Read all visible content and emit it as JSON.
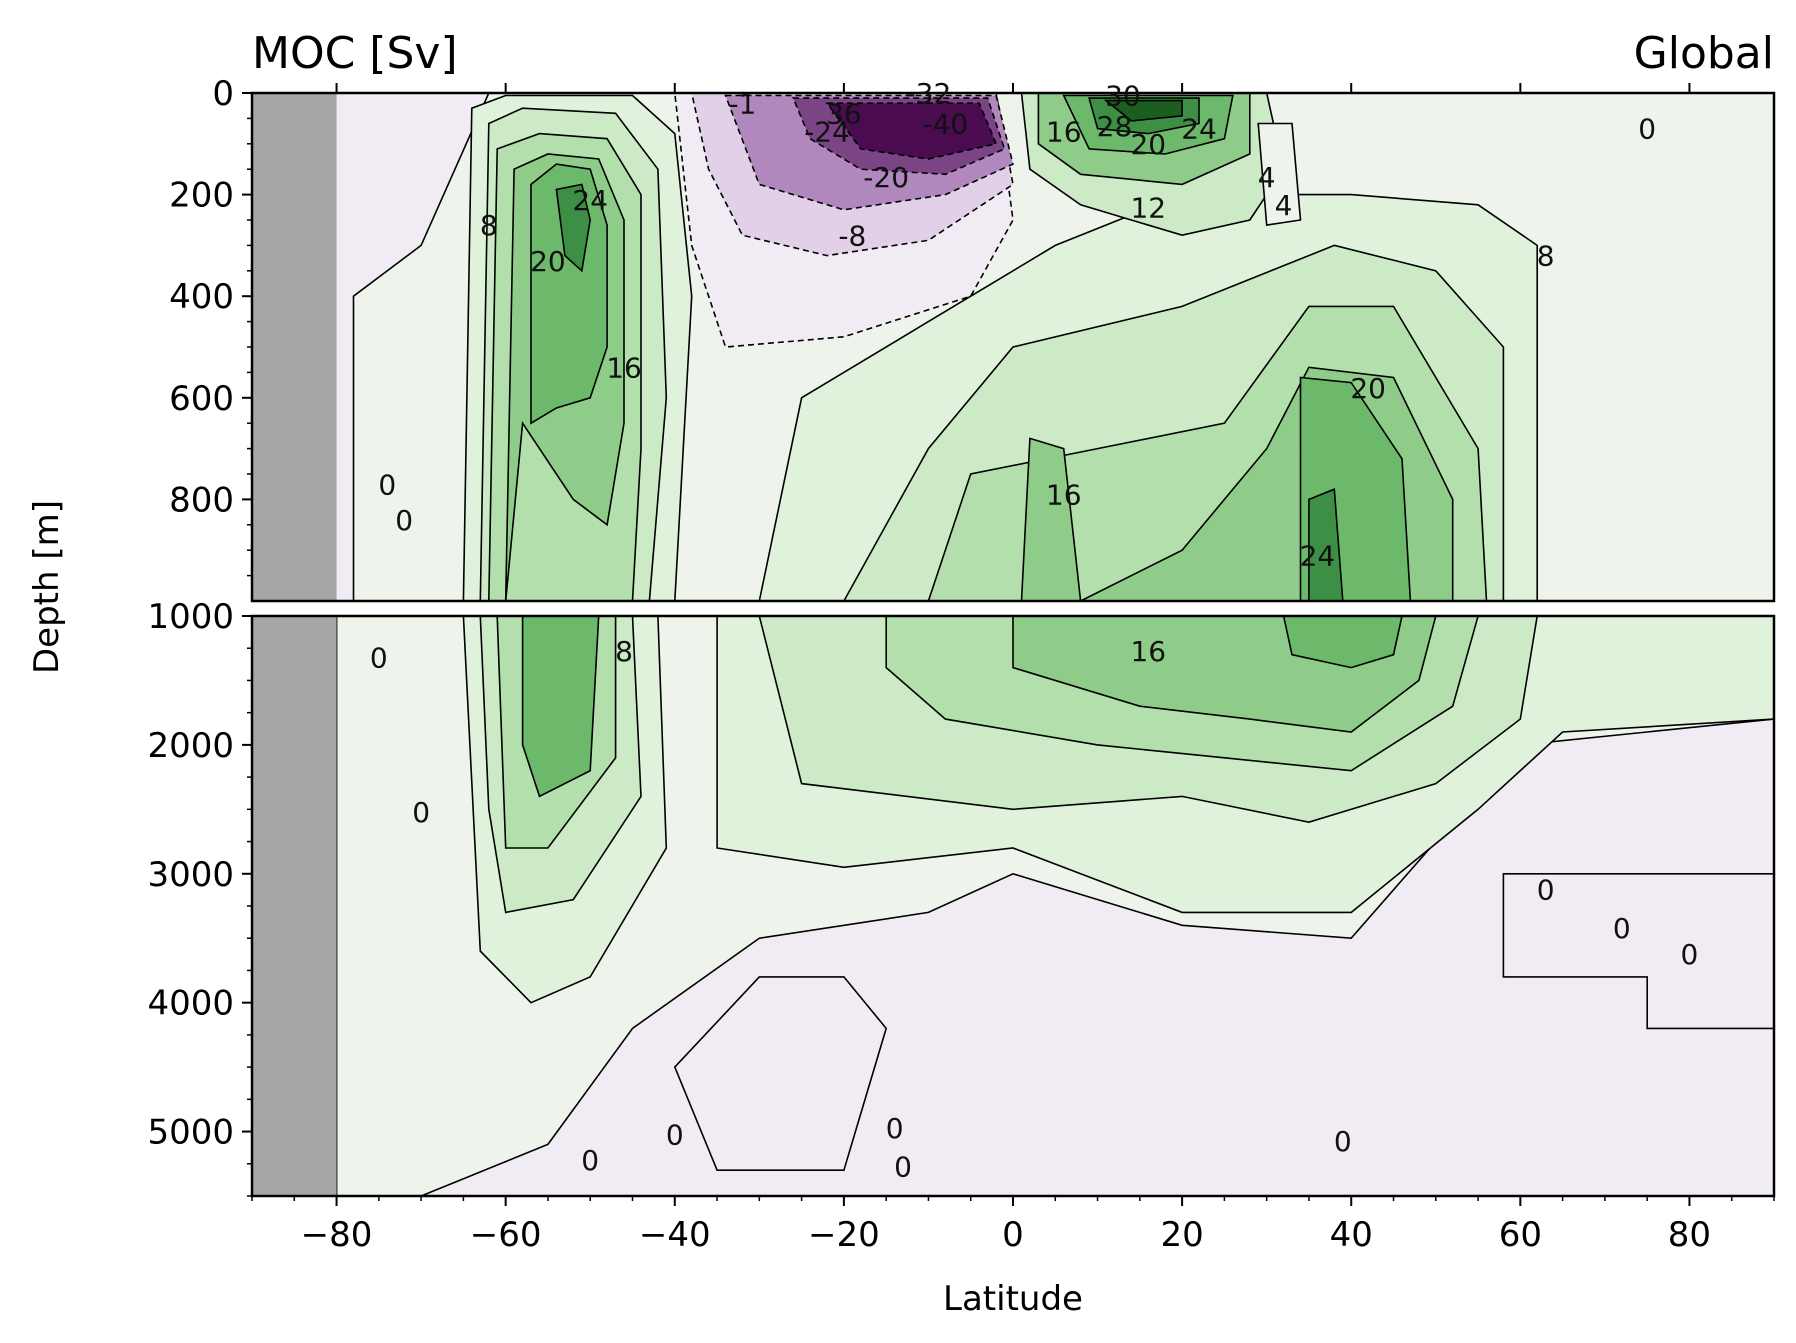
{
  "chart_data": {
    "type": "heatmap",
    "title_left": "MOC [Sv]",
    "title_right": "Global",
    "xlabel": "Latitude",
    "ylabel": "Depth [m]",
    "xlim": [
      -90,
      90
    ],
    "upper_ylim": [
      1000,
      0
    ],
    "lower_ylim": [
      5500,
      1000
    ],
    "x_ticks": [
      -80,
      -60,
      -40,
      -20,
      0,
      20,
      40,
      60,
      80
    ],
    "x_tick_labels": [
      "−80",
      "−60",
      "−40",
      "−20",
      "0",
      "20",
      "40",
      "60",
      "80"
    ],
    "upper_y_ticks": [
      0,
      200,
      400,
      600,
      800
    ],
    "upper_y_tick_labels": [
      "0",
      "200",
      "400",
      "600",
      "800"
    ],
    "lower_y_ticks": [
      1000,
      2000,
      3000,
      4000,
      5000
    ],
    "lower_y_tick_labels": [
      "1000",
      "2000",
      "3000",
      "4000",
      "5000"
    ],
    "land_mask_lat": -80,
    "colors": {
      "land": "#a6a6a6",
      "neg_weak": "#f1ecf4",
      "neg_mid": "#e2d0e8",
      "neg_strong": "#b088bd",
      "neg_max": "#4a0c4e",
      "pos_weak": "#eef3ec",
      "pos_1": "#e0f2dc",
      "pos_2": "#cdeac6",
      "pos_3": "#b2dfab",
      "pos_4": "#8fcc89",
      "pos_5": "#6cb96c",
      "pos_6": "#3d8f45",
      "pos_max": "#1b5e20"
    },
    "features": [
      {
        "name": "southern-cell",
        "sign": "positive",
        "lat_range": [
          -65,
          -42
        ],
        "depth_range": [
          0,
          4000
        ],
        "peak": 24,
        "peak_lat": -52,
        "peak_depth": 300
      },
      {
        "name": "tropical-south-cell",
        "sign": "negative",
        "lat_range": [
          -40,
          0
        ],
        "depth_range": [
          0,
          300
        ],
        "peak": -40,
        "peak_lat": -12,
        "peak_depth": 80
      },
      {
        "name": "tropical-north-cell",
        "sign": "positive",
        "lat_range": [
          2,
          30
        ],
        "depth_range": [
          0,
          200
        ],
        "peak": 30,
        "peak_lat": 18,
        "peak_depth": 50
      },
      {
        "name": "nadw-cell",
        "sign": "positive",
        "lat_range": [
          -20,
          60
        ],
        "depth_range": [
          500,
          3500
        ],
        "peak": 24,
        "peak_lat": 38,
        "peak_depth": 1100
      }
    ],
    "contour_labels": [
      {
        "text": "8",
        "lat": -62,
        "depth": 280
      },
      {
        "text": "24",
        "lat": -50,
        "depth": 230
      },
      {
        "text": "20",
        "lat": -55,
        "depth": 350
      },
      {
        "text": "16",
        "lat": -46,
        "depth": 560
      },
      {
        "text": "0",
        "lat": -74,
        "depth": 790
      },
      {
        "text": "0",
        "lat": -72,
        "depth": 860
      },
      {
        "text": "-1",
        "lat": -32,
        "depth": 40
      },
      {
        "text": "36",
        "lat": -20,
        "depth": 60
      },
      {
        "text": "-24",
        "lat": -22,
        "depth": 95
      },
      {
        "text": "-32",
        "lat": -10,
        "depth": 20
      },
      {
        "text": "-40",
        "lat": -8,
        "depth": 80
      },
      {
        "text": "-20",
        "lat": -15,
        "depth": 185
      },
      {
        "text": "-8",
        "lat": -19,
        "depth": 300
      },
      {
        "text": "16",
        "lat": 6,
        "depth": 95
      },
      {
        "text": "28",
        "lat": 12,
        "depth": 85
      },
      {
        "text": "30",
        "lat": 13,
        "depth": 25
      },
      {
        "text": "20",
        "lat": 16,
        "depth": 120
      },
      {
        "text": "24",
        "lat": 22,
        "depth": 90
      },
      {
        "text": "12",
        "lat": 16,
        "depth": 245
      },
      {
        "text": "4",
        "lat": 30,
        "depth": 185
      },
      {
        "text": "4",
        "lat": 32,
        "depth": 240
      },
      {
        "text": "8",
        "lat": 63,
        "depth": 340
      },
      {
        "text": "0",
        "lat": 75,
        "depth": 90
      },
      {
        "text": "20",
        "lat": 42,
        "depth": 600
      },
      {
        "text": "16",
        "lat": 6,
        "depth": 810
      },
      {
        "text": "24",
        "lat": 36,
        "depth": 930
      },
      {
        "text": "8",
        "lat": -46,
        "depth": 1350
      },
      {
        "text": "16",
        "lat": 16,
        "depth": 1350
      },
      {
        "text": "0",
        "lat": -75,
        "depth": 1400
      },
      {
        "text": "0",
        "lat": -70,
        "depth": 2600
      },
      {
        "text": "0",
        "lat": 63,
        "depth": 3200
      },
      {
        "text": "0",
        "lat": 72,
        "depth": 3500
      },
      {
        "text": "0",
        "lat": 80,
        "depth": 3700
      },
      {
        "text": "0",
        "lat": -50,
        "depth": 5300
      },
      {
        "text": "0",
        "lat": -40,
        "depth": 5100
      },
      {
        "text": "0",
        "lat": -14,
        "depth": 5050
      },
      {
        "text": "0",
        "lat": -13,
        "depth": 5350
      },
      {
        "text": "0",
        "lat": 39,
        "depth": 5150
      }
    ]
  }
}
